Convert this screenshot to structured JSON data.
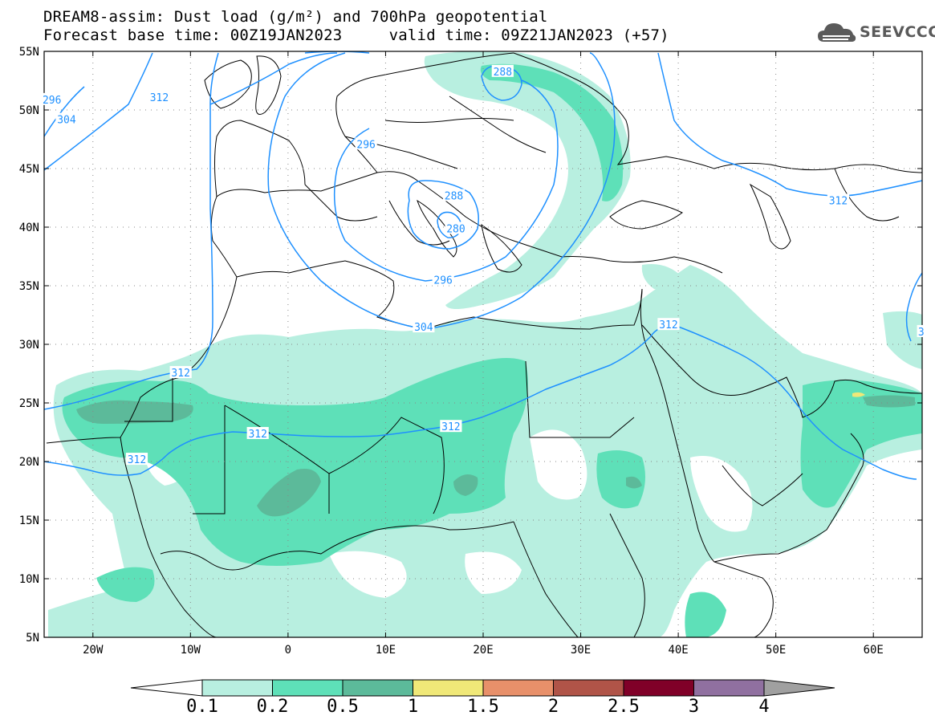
{
  "title": {
    "line1": "DREAM8-assim: Dust load (g/m²) and 700hPa geopotential",
    "line2": "Forecast base time: 00Z19JAN2023     valid time: 09Z21JAN2023 (+57)"
  },
  "logo": {
    "text": "SEEVCCC",
    "icon": "cloud-icon"
  },
  "map": {
    "lon_range": [
      -25,
      65
    ],
    "lat_range": [
      5,
      55
    ],
    "lon_ticks": [
      {
        "value": -20,
        "label": "20W"
      },
      {
        "value": -10,
        "label": "10W"
      },
      {
        "value": 0,
        "label": "0"
      },
      {
        "value": 10,
        "label": "10E"
      },
      {
        "value": 20,
        "label": "20E"
      },
      {
        "value": 30,
        "label": "30E"
      },
      {
        "value": 40,
        "label": "40E"
      },
      {
        "value": 50,
        "label": "50E"
      },
      {
        "value": 60,
        "label": "60E"
      }
    ],
    "lat_ticks": [
      {
        "value": 55,
        "label": "55N"
      },
      {
        "value": 50,
        "label": "50N"
      },
      {
        "value": 45,
        "label": "45N"
      },
      {
        "value": 40,
        "label": "40N"
      },
      {
        "value": 35,
        "label": "35N"
      },
      {
        "value": 30,
        "label": "30N"
      },
      {
        "value": 25,
        "label": "25N"
      },
      {
        "value": 20,
        "label": "20N"
      },
      {
        "value": 15,
        "label": "15N"
      },
      {
        "value": 10,
        "label": "10N"
      },
      {
        "value": 5,
        "label": "5N"
      }
    ],
    "contour_color": "#1e90ff",
    "contour_labels": [
      {
        "text": "296",
        "lon": -24.2,
        "lat": 50.9
      },
      {
        "text": "304",
        "lon": -22.7,
        "lat": 49.2
      },
      {
        "text": "312",
        "lon": -13.2,
        "lat": 51.1
      },
      {
        "text": "296",
        "lon": 8.0,
        "lat": 47.1
      },
      {
        "text": "288",
        "lon": 22.0,
        "lat": 53.3
      },
      {
        "text": "288",
        "lon": 17.0,
        "lat": 42.7
      },
      {
        "text": "280",
        "lon": 17.2,
        "lat": 39.9
      },
      {
        "text": "296",
        "lon": 15.9,
        "lat": 35.5
      },
      {
        "text": "304",
        "lon": 13.9,
        "lat": 31.5
      },
      {
        "text": "312",
        "lon": -11.0,
        "lat": 27.6
      },
      {
        "text": "312",
        "lon": -3.1,
        "lat": 22.4
      },
      {
        "text": "312",
        "lon": 16.7,
        "lat": 23.0
      },
      {
        "text": "312",
        "lon": -15.5,
        "lat": 20.2
      },
      {
        "text": "312",
        "lon": 39.0,
        "lat": 31.7
      },
      {
        "text": "312",
        "lon": 56.4,
        "lat": 42.3
      },
      {
        "text": "3",
        "lon": 64.9,
        "lat": 31.1
      }
    ]
  },
  "colorbar": {
    "colors": [
      "#ffffff",
      "#b8efe0",
      "#5ee0b8",
      "#5cba9a",
      "#f0e878",
      "#e8906a",
      "#b05448",
      "#800028",
      "#9070a0",
      "#a0a0a0"
    ],
    "labels": [
      "0.1",
      "0.2",
      "0.5",
      "1",
      "1.5",
      "2",
      "2.5",
      "3",
      "4"
    ]
  }
}
